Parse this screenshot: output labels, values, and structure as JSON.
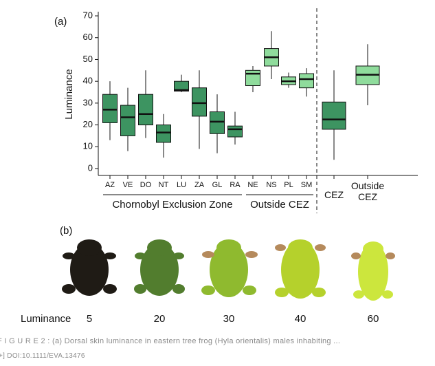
{
  "panel_a": "(a)",
  "chart_data": {
    "type": "box",
    "y_label": "Luminance",
    "ylim": [
      -3,
      72
    ],
    "yticks": [
      0,
      10,
      20,
      30,
      40,
      50,
      60,
      70
    ],
    "categories": [
      "AZ",
      "VE",
      "DO",
      "NT",
      "LU",
      "ZA",
      "GL",
      "RA",
      "NE",
      "NS",
      "PL",
      "SM",
      "CEZ",
      "Outside CEZ"
    ],
    "colors": [
      "#3d9461",
      "#3d9461",
      "#3d9461",
      "#3d9461",
      "#3d9461",
      "#3d9461",
      "#3d9461",
      "#3d9461",
      "#8fdc9c",
      "#8fdc9c",
      "#8fdc9c",
      "#8fdc9c",
      "#3d9461",
      "#8fdc9c"
    ],
    "stats": [
      {
        "min": 13,
        "q1": 21,
        "median": 27,
        "q3": 34,
        "max": 40
      },
      {
        "min": 8,
        "q1": 15,
        "median": 23.5,
        "q3": 29,
        "max": 37
      },
      {
        "min": 14,
        "q1": 20,
        "median": 25,
        "q3": 34,
        "max": 45
      },
      {
        "min": 5,
        "q1": 12,
        "median": 16.5,
        "q3": 20,
        "max": 25
      },
      {
        "min": 35,
        "q1": 35.5,
        "median": 36,
        "q3": 40,
        "max": 43
      },
      {
        "min": 9,
        "q1": 24,
        "median": 30,
        "q3": 37,
        "max": 45
      },
      {
        "min": 7,
        "q1": 16,
        "median": 21.5,
        "q3": 26,
        "max": 34
      },
      {
        "min": 11,
        "q1": 14.5,
        "median": 18,
        "q3": 19.5,
        "max": 26
      },
      {
        "min": 35,
        "q1": 38,
        "median": 43.5,
        "q3": 45,
        "max": 47
      },
      {
        "min": 41,
        "q1": 47,
        "median": 51,
        "q3": 55,
        "max": 63
      },
      {
        "min": 37,
        "q1": 38.5,
        "median": 40,
        "q3": 42,
        "max": 44
      },
      {
        "min": 33,
        "q1": 37,
        "median": 41,
        "q3": 43.5,
        "max": 46
      },
      {
        "min": 4,
        "q1": 18,
        "median": 22.5,
        "q3": 30.5,
        "max": 45
      },
      {
        "min": 29,
        "q1": 38.5,
        "median": 43,
        "q3": 47,
        "max": 57
      }
    ],
    "groups": [
      "Chornobyl Exclusion Zone",
      "Outside CEZ"
    ]
  },
  "panel_b": "(b)",
  "frogs": {
    "label": "Luminance",
    "values": [
      5,
      20,
      30,
      40,
      60
    ]
  },
  "caption": "F I G U R E 2 : (a) Dorsal skin luminance in eastern tree frog (Hyla orientalis) males inhabiting ...",
  "doi": "+]   DOI:10.1111/EVA.13476"
}
